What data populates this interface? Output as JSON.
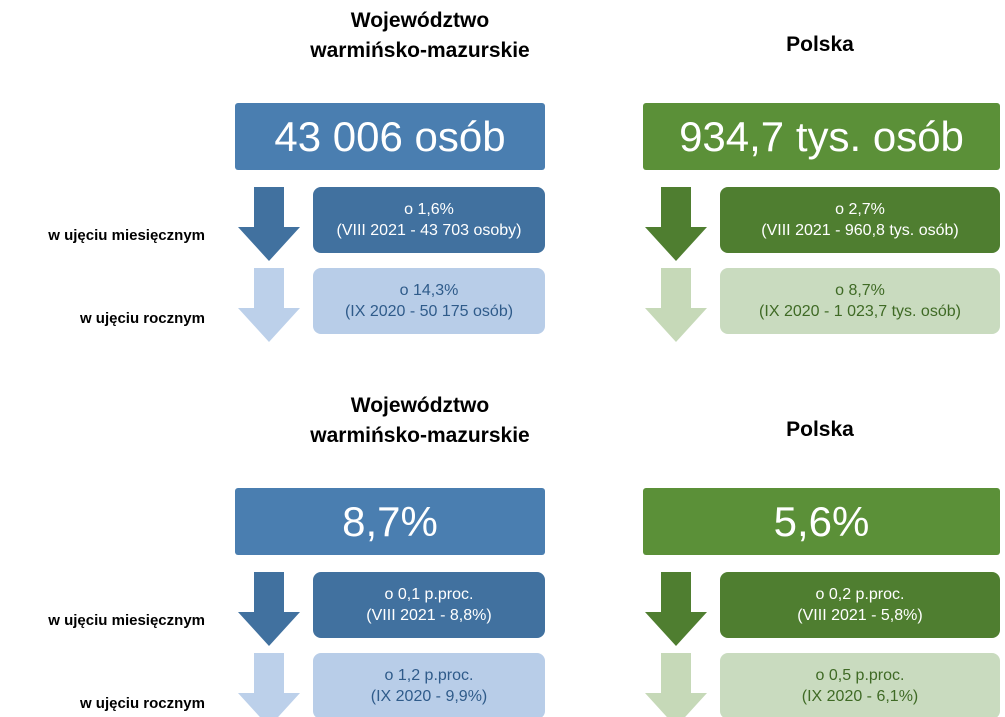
{
  "sections": [
    {
      "region_title": [
        "Województwo",
        "warmińsko-mazurskie"
      ],
      "country_title": "Polska",
      "region_value": "43 006 osób",
      "country_value": "934,7 tys. osób",
      "row_labels": [
        "w ujęciu miesięcznym",
        "w ujęciu rocznym"
      ],
      "region_changes": [
        {
          "change": "o 1,6%",
          "reference": "(VIII 2021 - 43 703 osoby)"
        },
        {
          "change": "o 14,3%",
          "reference": "(IX 2020 - 50 175 osób)"
        }
      ],
      "country_changes": [
        {
          "change": "o 2,7%",
          "reference": "(VIII 2021 - 960,8 tys. osób)"
        },
        {
          "change": "o 8,7%",
          "reference": "(IX 2020 -  1 023,7 tys. osób)"
        }
      ]
    },
    {
      "region_title": [
        "Województwo",
        "warmińsko-mazurskie"
      ],
      "country_title": "Polska",
      "region_value": "8,7%",
      "country_value": "5,6%",
      "row_labels": [
        "w ujęciu miesięcznym",
        "w ujęciu rocznym"
      ],
      "region_changes": [
        {
          "change": "o 0,1 p.proc.",
          "reference": "(VIII 2021 - 8,8%)"
        },
        {
          "change": "o 1,2 p.proc.",
          "reference": "(IX 2020 - 9,9%)"
        }
      ],
      "country_changes": [
        {
          "change": "o 0,2 p.proc.",
          "reference": "(VIII 2021 - 5,8%)"
        },
        {
          "change": "o 0,5 p.proc.",
          "reference": "(IX 2020 - 6,1%)"
        }
      ]
    }
  ]
}
